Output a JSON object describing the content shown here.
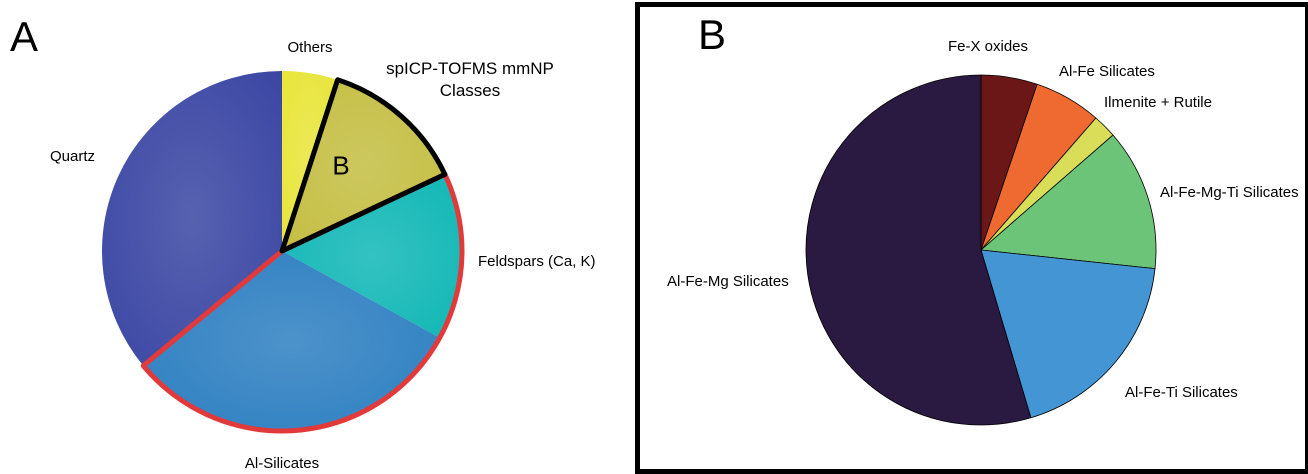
{
  "chart_data": [
    {
      "panel": "A",
      "type": "pie",
      "title": "",
      "slices": [
        {
          "label": "Others",
          "value": 5,
          "color": "#e8e53a"
        },
        {
          "label": "B",
          "value": 13,
          "color": "#c4be42",
          "callout": "spICP-TOFMS mmNP Classes",
          "highlight": "black"
        },
        {
          "label": "Feldspars (Ca, K)",
          "value": 15,
          "color": "#10b7b6",
          "highlight": "red"
        },
        {
          "label": "Al-Silicates",
          "value": 31,
          "color": "#2d7fc1",
          "highlight": "red"
        },
        {
          "label": "Quartz",
          "value": 36,
          "color": "#3a46a3"
        }
      ],
      "highlight_colors": {
        "black": "#000000",
        "red": "#e23a3a"
      }
    },
    {
      "panel": "B",
      "type": "pie",
      "title": "",
      "slices": [
        {
          "label": "Fe-X oxides",
          "value": 5.2,
          "color": "#6b1717"
        },
        {
          "label": "Al-Fe Silicates",
          "value": 6.2,
          "color": "#ef6a30"
        },
        {
          "label": "Ilmenite + Rutile",
          "value": 2.2,
          "color": "#d9dd57"
        },
        {
          "label": "Al-Fe-Mg-Ti Silicates",
          "value": 13.1,
          "color": "#6cc478"
        },
        {
          "label": "Al-Fe-Ti Silicates",
          "value": 18.7,
          "color": "#4395d4"
        },
        {
          "label": "Al-Fe-Mg Silicates",
          "value": 54.6,
          "color": "#2a1940"
        }
      ]
    }
  ]
}
